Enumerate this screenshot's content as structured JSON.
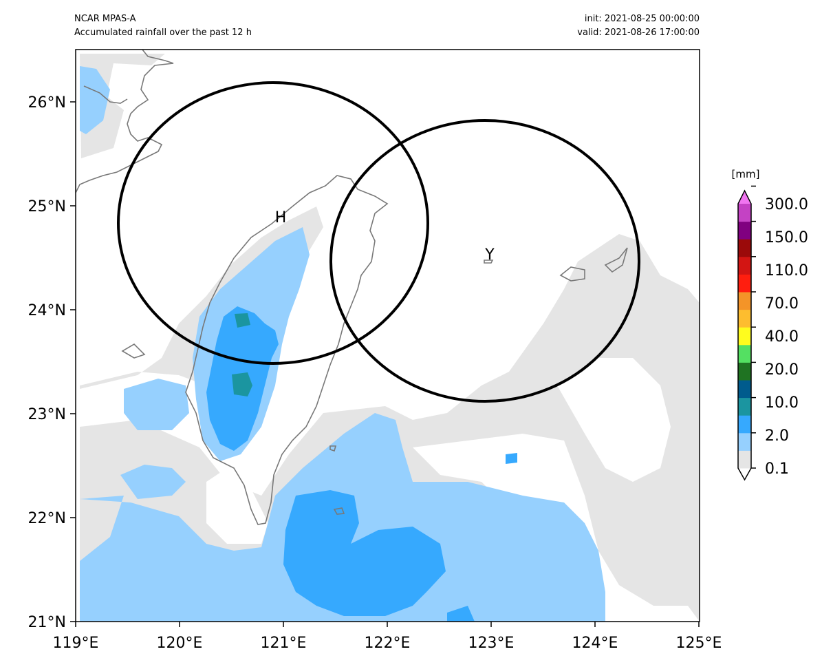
{
  "header": {
    "model": "NCAR MPAS-A",
    "description": "Accumulated rainfall over the past 12 h",
    "init": "init: 2021-08-25 00:00:00",
    "valid": "valid: 2021-08-26 17:00:00"
  },
  "map": {
    "lon_range": [
      119,
      125
    ],
    "lat_range": [
      21,
      26.5
    ],
    "x_tick_labels": [
      "119°E",
      "120°E",
      "121°E",
      "122°E",
      "123°E",
      "124°E",
      "125°E"
    ],
    "y_tick_labels": [
      "21°N",
      "22°N",
      "23°N",
      "24°N",
      "25°N",
      "26°N"
    ],
    "markers": [
      {
        "label": "H",
        "lon": 120.93,
        "lat": 24.83
      },
      {
        "label": "Y",
        "lon": 122.93,
        "lat": 24.47
      }
    ]
  },
  "colorbar": {
    "unit": "[mm]",
    "tick_labels": [
      "0.1",
      "2.0",
      "10.0",
      "20.0",
      "40.0",
      "70.0",
      "110.0",
      "150.0",
      "300.0"
    ],
    "colors": [
      "#ffffff",
      "#e5e5e5",
      "#96d0fe",
      "#36a9fe",
      "#1b95a0",
      "#005b8d",
      "#1f7322",
      "#54e062",
      "#fffc1e",
      "#fdbd2f",
      "#f49428",
      "#ff1e0f",
      "#d31513",
      "#9b0a0a",
      "#800080",
      "#c442c4",
      "#f075f0"
    ]
  }
}
